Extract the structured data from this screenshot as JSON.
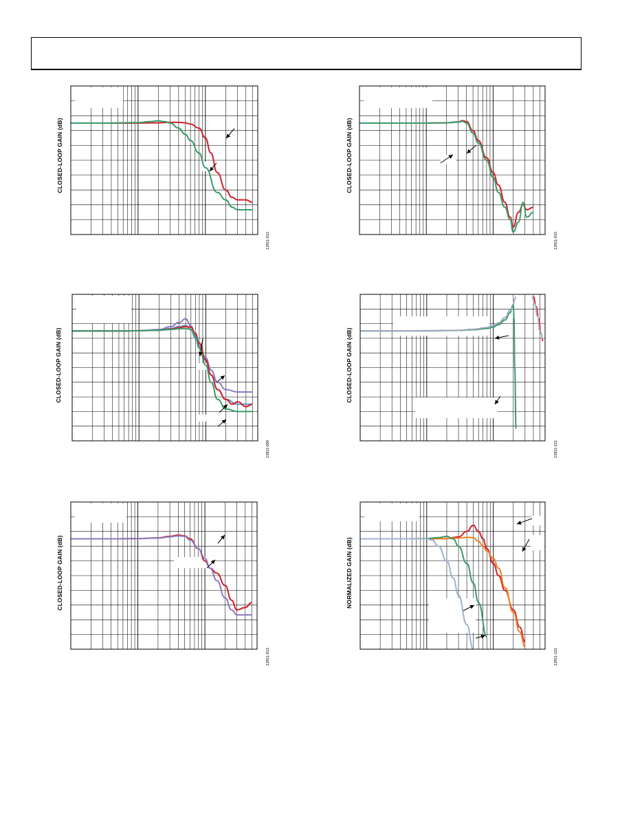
{
  "page": {
    "header_text": ""
  },
  "chart_data": [
    {
      "id": "p1",
      "type": "line",
      "title": "",
      "ylabel": "CLOSED-LOOP GAIN (dB)",
      "figure_id": "12811-012",
      "xscale": "log",
      "grid": true,
      "legend_position": "upper-left",
      "series": [
        {
          "name": "",
          "color": "#d0202a",
          "x": [
            0.1,
            0.3,
            1,
            2,
            3,
            4,
            5,
            6,
            8,
            10,
            12,
            15,
            20,
            25,
            30,
            40,
            50
          ],
          "y": [
            0,
            0,
            0,
            0.1,
            0.3,
            0.3,
            0.1,
            -0.4,
            -2,
            -6,
            -12,
            -20,
            -27,
            -30,
            -31,
            -31,
            -32
          ]
        },
        {
          "name": "",
          "color": "#3a9a6a",
          "x": [
            0.1,
            0.3,
            1,
            1.5,
            2,
            2.5,
            3,
            4,
            5,
            6,
            8,
            10,
            15,
            20,
            25,
            30,
            50
          ],
          "y": [
            0,
            0,
            0.2,
            0.6,
            0.9,
            0.6,
            0,
            -2,
            -4.5,
            -7,
            -12,
            -18,
            -28,
            -31,
            -34,
            -35,
            -35
          ]
        }
      ],
      "arrows": 2
    },
    {
      "id": "p2",
      "type": "line",
      "title": "",
      "ylabel": "CLOSED-LOOP GAIN (dB)",
      "figure_id": "12811-015",
      "xscale": "log",
      "grid": true,
      "legend_position": "upper-left",
      "series": [
        {
          "name": "",
          "color": "#d0202a",
          "x": [
            0.1,
            0.5,
            1,
            2,
            3,
            3.5,
            4,
            5,
            6,
            8,
            10,
            12,
            15,
            18,
            20,
            24,
            28,
            32,
            40
          ],
          "y": [
            0,
            0,
            0,
            0.1,
            0.5,
            1.0,
            0.6,
            -3,
            -7,
            -14,
            -20,
            -25,
            -32,
            -38,
            -42,
            -36,
            -33,
            -35,
            -34
          ]
        },
        {
          "name": "",
          "color": "#3a9a6a",
          "x": [
            0.1,
            0.5,
            1,
            2,
            3,
            3.5,
            4,
            5,
            6,
            8,
            10,
            12,
            15,
            18,
            20,
            24,
            28,
            32,
            40
          ],
          "y": [
            0,
            0,
            0,
            0.1,
            0.4,
            0.7,
            0,
            -4,
            -8,
            -15,
            -22,
            -28,
            -34,
            -39,
            -44,
            -40,
            -32,
            -38,
            -36
          ]
        }
      ],
      "arrows": 2
    },
    {
      "id": "p3",
      "type": "line",
      "title": "",
      "ylabel": "CLOSED-LOOP GAIN (dB)",
      "figure_id": "12811-099",
      "xscale": "log",
      "grid": true,
      "legend_position": "upper-left",
      "series": [
        {
          "name": "",
          "color": "#8a78c0",
          "x": [
            0.1,
            0.5,
            1,
            2,
            3,
            4,
            5,
            6,
            7,
            8,
            10,
            12,
            15,
            20,
            30,
            50
          ],
          "y": [
            0,
            0,
            0.1,
            0.6,
            1.8,
            3.5,
            5,
            2,
            -2,
            -6,
            -11,
            -16,
            -21,
            -24,
            -25,
            -25
          ]
        },
        {
          "name": "",
          "color": "#5a90c8",
          "x": [
            0.1,
            0.5,
            1,
            2,
            3,
            4,
            5,
            6,
            7,
            8,
            10,
            12,
            15,
            20,
            30,
            50
          ],
          "y": [
            0,
            0,
            0.1,
            0.4,
            1,
            1.8,
            2.2,
            0.5,
            -3,
            -7,
            -12,
            -18,
            -24,
            -28,
            -30,
            -30
          ]
        },
        {
          "name": "",
          "color": "#d0202a",
          "x": [
            0.1,
            0.5,
            1,
            2,
            3,
            4,
            5,
            6,
            7,
            8,
            10,
            12,
            15,
            20,
            25,
            30,
            40,
            50
          ],
          "y": [
            0,
            0,
            0.1,
            0.3,
            0.8,
            1.3,
            1.8,
            1.5,
            -1,
            -5,
            -12,
            -18,
            -24,
            -28,
            -30,
            -29,
            -31,
            -30
          ]
        },
        {
          "name": "",
          "color": "#3a9a6a",
          "x": [
            0.1,
            0.5,
            1,
            2,
            3,
            4,
            5,
            6,
            7,
            8,
            10,
            12,
            15,
            20,
            30,
            50
          ],
          "y": [
            0,
            0,
            0.1,
            0.3,
            0.6,
            0.9,
            1,
            0.6,
            -2,
            -7,
            -14,
            -21,
            -28,
            -32,
            -33,
            -33
          ]
        }
      ],
      "arrows": 4
    },
    {
      "id": "p4",
      "type": "line",
      "title": "",
      "ylabel": "CLOSED-LOOP GAIN (dB)",
      "figure_id": "12811-221",
      "xscale": "log",
      "grid": true,
      "legend_position": "upper-left",
      "series": [
        {
          "name": "",
          "color": "#3a9a6a",
          "x": [
            0.1,
            1,
            3,
            5,
            8,
            10,
            12,
            15,
            18,
            19,
            20,
            20.5,
            21,
            22
          ],
          "y": [
            0,
            0.05,
            0.2,
            0.5,
            1,
            1.6,
            2.6,
            4.5,
            7.5,
            9.5,
            11,
            5,
            -15,
            -40
          ]
        },
        {
          "name": "",
          "color": "#a0a8c0",
          "x": [
            0.1,
            1,
            3,
            5,
            8,
            10,
            12,
            15,
            18,
            20,
            21,
            22
          ],
          "y": [
            0,
            0.1,
            0.3,
            0.7,
            1.4,
            2.2,
            3.3,
            5.5,
            8.5,
            11,
            13,
            14
          ]
        },
        {
          "name": "",
          "color": "#d0202a",
          "x": [
            40,
            44,
            48,
            52,
            56
          ],
          "y": [
            14,
            10,
            5,
            -1,
            -4
          ]
        },
        {
          "name": "",
          "color": "#b0b8d0",
          "x": [
            38,
            42,
            46,
            50,
            56
          ],
          "y": [
            14,
            11,
            6,
            0,
            -3
          ]
        }
      ],
      "arrows": 2
    },
    {
      "id": "p5",
      "type": "line",
      "title": "",
      "ylabel": "CLOSED-LOOP GAIN (dB)",
      "figure_id": "12811-013",
      "xscale": "log",
      "grid": true,
      "legend_position": "upper-left",
      "series": [
        {
          "name": "",
          "color": "#d0202a",
          "x": [
            0.1,
            0.5,
            1,
            2,
            3,
            4,
            5,
            6,
            8,
            10,
            12,
            15,
            20,
            25,
            30,
            40,
            50
          ],
          "y": [
            0,
            0,
            0.1,
            0.4,
            1,
            1.5,
            1.2,
            0,
            -4,
            -9,
            -12,
            -14,
            -19,
            -25,
            -29,
            -28,
            -26
          ]
        },
        {
          "name": "",
          "color": "#8a78c0",
          "x": [
            0.1,
            0.5,
            1,
            2,
            3,
            4,
            5,
            6,
            8,
            10,
            12,
            15,
            20,
            25,
            30,
            40,
            50
          ],
          "y": [
            0,
            0,
            0.1,
            0.3,
            0.8,
            1.2,
            1,
            -0.5,
            -4,
            -8,
            -12,
            -17,
            -24,
            -29,
            -31,
            -31,
            -31
          ]
        }
      ],
      "arrows": 2
    },
    {
      "id": "p6",
      "type": "line",
      "title": "",
      "ylabel": "NORMALIZED GAIN (dB)",
      "figure_id": "12811-121",
      "xscale": "log",
      "grid": true,
      "legend_position": "upper-left",
      "series": [
        {
          "name": "",
          "color": "#d0202a",
          "x": [
            0.1,
            1,
            2,
            3,
            4,
            5,
            6,
            7,
            8,
            10,
            12,
            15,
            20,
            25,
            30
          ],
          "y": [
            0,
            0,
            0.1,
            0.8,
            3,
            5.5,
            3,
            0,
            -4,
            -10,
            -15,
            -21,
            -29,
            -36,
            -42
          ]
        },
        {
          "name": "",
          "color": "#f08020",
          "x": [
            0.1,
            1,
            2,
            3,
            4,
            5,
            6,
            7,
            8,
            10,
            12,
            15,
            20,
            25,
            30
          ],
          "y": [
            0,
            0,
            0.1,
            0.3,
            0.6,
            0.5,
            -1,
            -3,
            -5,
            -8,
            -12,
            -20,
            -30,
            -38,
            -44
          ]
        },
        {
          "name": "",
          "color": "#3a9a6a",
          "x": [
            0.1,
            0.5,
            1,
            1.5,
            2,
            2.5,
            3,
            4,
            5,
            6,
            8
          ],
          "y": [
            0,
            0,
            0.1,
            0.5,
            1,
            0,
            -3,
            -10,
            -18,
            -26,
            -40
          ]
        },
        {
          "name": "",
          "color": "#a0b0d0",
          "x": [
            0.1,
            0.5,
            1,
            1.2,
            1.5,
            2,
            2.5,
            3,
            4,
            5
          ],
          "y": [
            0,
            0,
            0,
            -0.5,
            -3,
            -9,
            -16,
            -23,
            -35,
            -45
          ]
        }
      ],
      "arrows": 3
    }
  ]
}
